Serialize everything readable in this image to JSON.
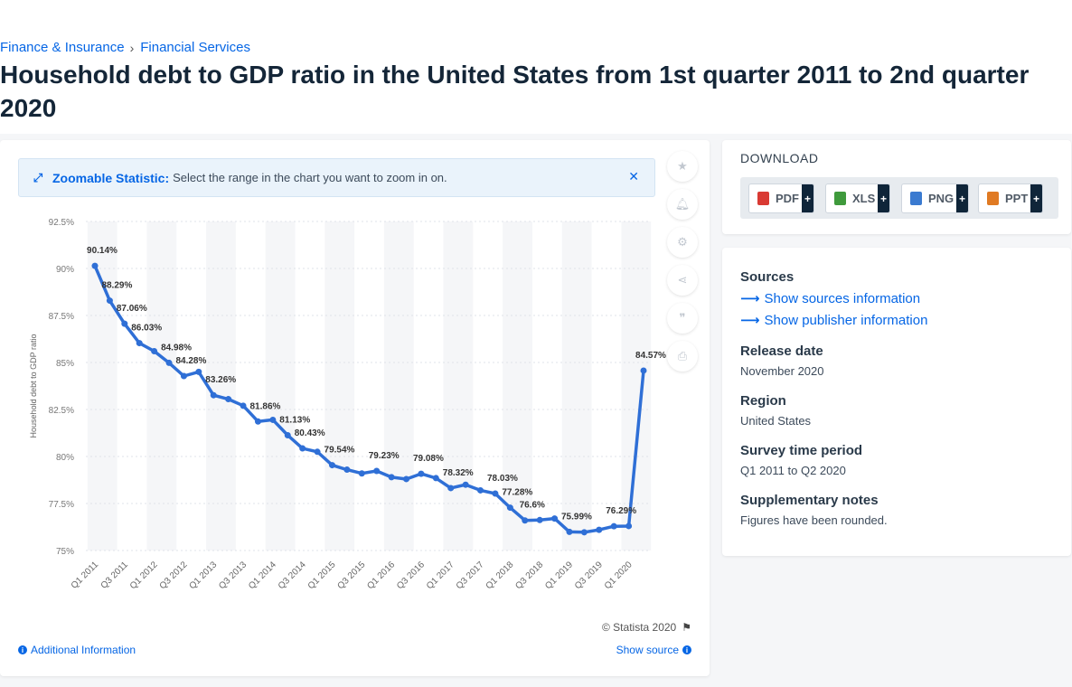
{
  "breadcrumb": {
    "items": [
      "Finance & Insurance",
      "Financial Services"
    ],
    "separator": "›"
  },
  "page_title": "Household debt to GDP ratio in the United States from 1st quarter 2011 to 2nd quarter 2020",
  "zoom_notice": {
    "strong": "Zoomable Statistic:",
    "text": "Select the range in the chart you want to zoom in on.",
    "close": "✕"
  },
  "tools": [
    "star-icon",
    "bell-icon",
    "gear-icon",
    "share-icon",
    "quote-icon",
    "print-icon"
  ],
  "copyright": "© Statista 2020",
  "additional_info": "Additional Information",
  "show_source": "Show source",
  "download": {
    "title": "DOWNLOAD",
    "buttons": [
      {
        "label": "PDF",
        "color": "#d93a33"
      },
      {
        "label": "XLS",
        "color": "#3f9a3c"
      },
      {
        "label": "PNG",
        "color": "#3a7ad0"
      },
      {
        "label": "PPT",
        "color": "#e07a23"
      }
    ],
    "plus": "+"
  },
  "meta": {
    "sources_label": "Sources",
    "show_sources": "Show sources information",
    "show_publisher": "Show publisher information",
    "release_label": "Release date",
    "release_value": "November 2020",
    "region_label": "Region",
    "region_value": "United States",
    "survey_label": "Survey time period",
    "survey_value": "Q1 2011 to Q2 2020",
    "notes_label": "Supplementary notes",
    "notes_value": "Figures have been rounded."
  },
  "chart_data": {
    "type": "line",
    "ylabel": "Household debt to GDP ratio",
    "ylim": [
      75,
      92.5
    ],
    "yticks": [
      75,
      77.5,
      80,
      82.5,
      85,
      87.5,
      90,
      92.5
    ],
    "ytick_labels": [
      "75%",
      "77.5%",
      "80%",
      "82.5%",
      "85%",
      "87.5%",
      "90%",
      "92.5%"
    ],
    "x_tick_labels": [
      "Q1 2011",
      "Q3 2011",
      "Q1 2012",
      "Q3 2012",
      "Q1 2013",
      "Q3 2013",
      "Q1 2014",
      "Q3 2014",
      "Q1 2015",
      "Q3 2015",
      "Q1 2016",
      "Q3 2016",
      "Q1 2017",
      "Q3 2017",
      "Q1 2018",
      "Q3 2018",
      "Q1 2019",
      "Q3 2019",
      "Q1 2020"
    ],
    "line_color": "#2f6fd6",
    "x": [
      "Q1 2011",
      "Q2 2011",
      "Q3 2011",
      "Q4 2011",
      "Q1 2012",
      "Q2 2012",
      "Q3 2012",
      "Q4 2012",
      "Q1 2013",
      "Q2 2013",
      "Q3 2013",
      "Q4 2013",
      "Q1 2014",
      "Q2 2014",
      "Q3 2014",
      "Q4 2014",
      "Q1 2015",
      "Q2 2015",
      "Q3 2015",
      "Q4 2015",
      "Q1 2016",
      "Q2 2016",
      "Q3 2016",
      "Q4 2016",
      "Q1 2017",
      "Q2 2017",
      "Q3 2017",
      "Q4 2017",
      "Q1 2018",
      "Q2 2018",
      "Q3 2018",
      "Q4 2018",
      "Q1 2019",
      "Q2 2019",
      "Q3 2019",
      "Q4 2019",
      "Q1 2020",
      "Q2 2020"
    ],
    "values": [
      90.14,
      88.29,
      87.06,
      86.03,
      85.6,
      84.98,
      84.28,
      84.5,
      83.26,
      83.05,
      82.7,
      81.86,
      81.95,
      81.13,
      80.43,
      80.25,
      79.54,
      79.3,
      79.1,
      79.23,
      78.9,
      78.8,
      79.08,
      78.85,
      78.32,
      78.5,
      78.2,
      78.03,
      77.28,
      76.6,
      76.62,
      76.7,
      75.99,
      75.97,
      76.1,
      76.29,
      76.3,
      84.57
    ],
    "data_labels": [
      "90.14%",
      "88.29%",
      "87.06%",
      "86.03%",
      "",
      "84.98%",
      "84.28%",
      "",
      "83.26%",
      "",
      "",
      "81.86%",
      "",
      "81.13%",
      "80.43%",
      "",
      "79.54%",
      "",
      "",
      "79.23%",
      "",
      "",
      "79.08%",
      "",
      "78.32%",
      "",
      "",
      "78.03%",
      "77.28%",
      "76.6%",
      "",
      "",
      "75.99%",
      "",
      "",
      "76.29%",
      "",
      "84.57%"
    ],
    "grid": true,
    "legend": "none"
  }
}
